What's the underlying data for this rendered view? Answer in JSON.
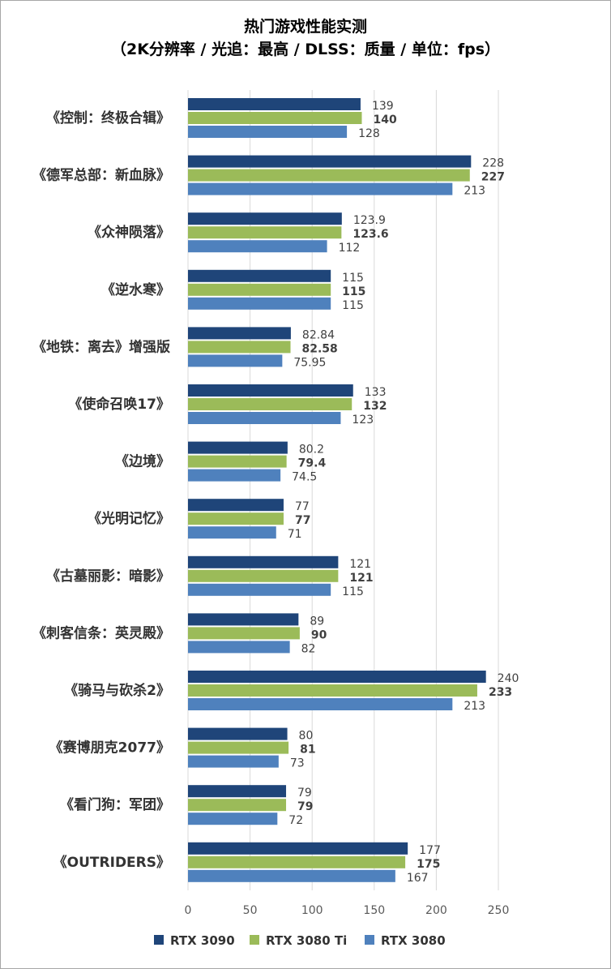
{
  "chart_data": {
    "type": "bar",
    "orientation": "horizontal",
    "title": "热门游戏性能实测",
    "subtitle": "（2K分辨率 / 光追：最高 / DLSS：质量 / 单位：fps）",
    "xlabel": "",
    "ylabel": "",
    "xlim": [
      0,
      250
    ],
    "xticks": [
      0,
      50,
      100,
      150,
      200,
      250
    ],
    "grid": true,
    "legend_position": "bottom",
    "categories": [
      "《控制：终极合辑》",
      "《德军总部：新血脉》",
      "《众神陨落》",
      "《逆水寒》",
      "《地铁：离去》增强版",
      "《使命召唤17》",
      "《边境》",
      "《光明记忆》",
      "《古墓丽影：暗影》",
      "《刺客信条：英灵殿》",
      "《骑马与砍杀2》",
      "《赛博朋克2077》",
      "《看门狗：军团》",
      "《OUTRIDERS》"
    ],
    "series": [
      {
        "name": "RTX 3090",
        "color": "#1F4579",
        "bold_labels": false,
        "values": [
          "139",
          "228",
          "123.9",
          "115",
          "82.84",
          "133",
          "80.2",
          "77",
          "121",
          "89",
          "240",
          "80",
          "79",
          "177"
        ]
      },
      {
        "name": "RTX 3080 Ti",
        "color": "#9BBB59",
        "bold_labels": true,
        "values": [
          "140",
          "227",
          "123.6",
          "115",
          "82.58",
          "132",
          "79.4",
          "77",
          "121",
          "90",
          "233",
          "81",
          "79",
          "175"
        ]
      },
      {
        "name": "RTX 3080",
        "color": "#4F81BD",
        "bold_labels": false,
        "values": [
          "128",
          "213",
          "112",
          "115",
          "75.95",
          "123",
          "74.5",
          "71",
          "115",
          "82",
          "213",
          "73",
          "72",
          "167"
        ]
      }
    ]
  }
}
